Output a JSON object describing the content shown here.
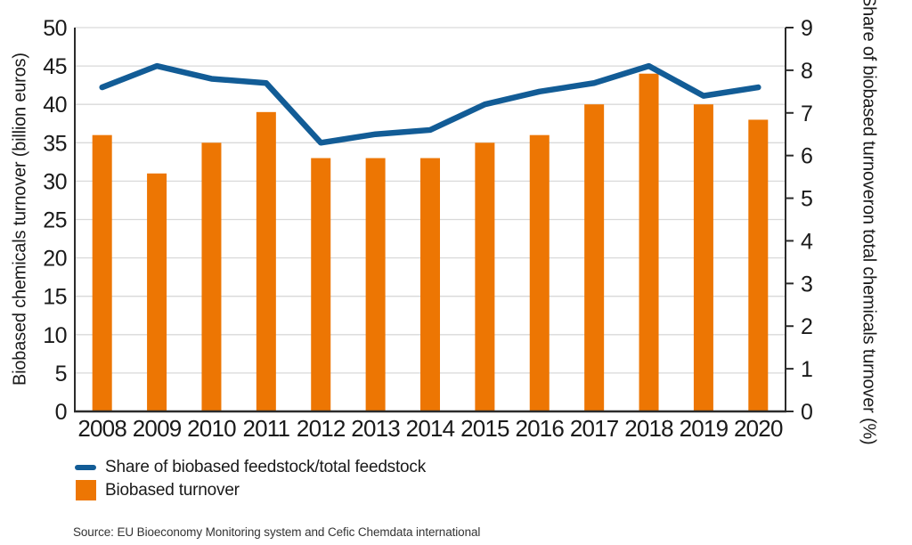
{
  "chart_data": {
    "type": "bar+line combo",
    "categories": [
      "2008",
      "2009",
      "2010",
      "2011",
      "2012",
      "2013",
      "2014",
      "2015",
      "2016",
      "2017",
      "2018",
      "2019",
      "2020"
    ],
    "series": [
      {
        "name": "Biobased turnover",
        "render": "bar",
        "axis": "left",
        "unit": "billion euros",
        "values": [
          36,
          31,
          35,
          39,
          33,
          33,
          33,
          35,
          36,
          40,
          44,
          40,
          38
        ]
      },
      {
        "name": "Share of biobased feedstock/total feedstock",
        "render": "line",
        "axis": "right",
        "unit": "%",
        "values": [
          7.6,
          8.1,
          7.8,
          7.7,
          6.3,
          6.5,
          6.6,
          7.2,
          7.5,
          7.7,
          8.1,
          7.4,
          7.6
        ]
      }
    ],
    "ylabel_left": "Biobased chemicals turnover (billion euros)",
    "ylabel_right_line1": "Share of biobased turnover",
    "ylabel_right_line2": "on total chemicals turnover (%)",
    "ylim_left": [
      0,
      50
    ],
    "ytick_step_left": 5,
    "ylim_right": [
      0,
      9
    ],
    "ytick_step_right": 1,
    "grid": "horizontal gridlines at left-axis steps of 5",
    "legend_position": "bottom-left"
  },
  "legend": {
    "items": [
      {
        "label": "Share of biobased feedstock/total feedstock",
        "swatch": "line"
      },
      {
        "label": "Biobased turnover",
        "swatch": "square"
      }
    ]
  },
  "source": {
    "text": "Source: EU Bioeconomy Monitoring system and Cefic Chemdata international"
  },
  "colors": {
    "bar_orange": "#ED7603",
    "line_blue": "#125C96",
    "gridline": "#D9D9D9",
    "axis": "#2B2B2B",
    "text": "#1A1A1A",
    "source_text": "#333333"
  }
}
